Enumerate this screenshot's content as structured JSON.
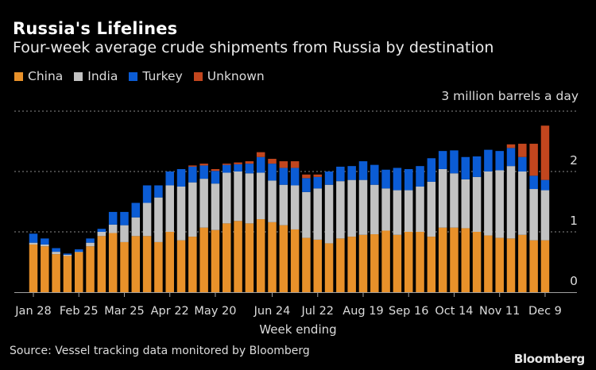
{
  "chart_data": {
    "type": "bar",
    "stacked": true,
    "title": "Russia's Lifelines",
    "subtitle": "Four-week average crude shipments from Russia by destination",
    "xlabel": "Week ending",
    "ylabel": "3 million barrels a day",
    "ylim": [
      0,
      3
    ],
    "yticks": [
      0,
      1,
      2,
      3
    ],
    "ytick_labels": [
      "0",
      "1",
      "2",
      ""
    ],
    "grid": true,
    "legend_position": "top-left",
    "bar_count": 46,
    "x_ticks": [
      {
        "bar_index": 0,
        "label": "Jan 28"
      },
      {
        "bar_index": 4,
        "label": "Feb 25"
      },
      {
        "bar_index": 8,
        "label": "Mar 25"
      },
      {
        "bar_index": 12,
        "label": "Apr 22"
      },
      {
        "bar_index": 16,
        "label": "May 20"
      },
      {
        "bar_index": 21,
        "label": "Jun 24"
      },
      {
        "bar_index": 25,
        "label": "Jul 22"
      },
      {
        "bar_index": 29,
        "label": "Aug 19"
      },
      {
        "bar_index": 33,
        "label": "Sep 16"
      },
      {
        "bar_index": 37,
        "label": "Oct 14"
      },
      {
        "bar_index": 41,
        "label": "Nov 11"
      },
      {
        "bar_index": 45,
        "label": "Dec 9"
      }
    ],
    "series": [
      {
        "name": "China",
        "color": "#E8912A",
        "values": [
          0.79,
          0.76,
          0.63,
          0.6,
          0.66,
          0.76,
          0.93,
          0.98,
          0.83,
          0.93,
          0.93,
          0.83,
          1.0,
          0.86,
          0.92,
          1.07,
          1.03,
          1.14,
          1.18,
          1.14,
          1.21,
          1.16,
          1.11,
          1.04,
          0.9,
          0.87,
          0.81,
          0.89,
          0.92,
          0.95,
          0.96,
          1.02,
          0.95,
          1.0,
          1.0,
          0.92,
          1.07,
          1.07,
          1.06,
          1.0,
          0.94,
          0.9,
          0.89,
          0.95,
          0.86,
          0.86
        ]
      },
      {
        "name": "India",
        "color": "#C2C2C2",
        "values": [
          0.03,
          0.03,
          0.04,
          0.02,
          0.01,
          0.06,
          0.07,
          0.14,
          0.28,
          0.31,
          0.55,
          0.74,
          0.77,
          0.89,
          0.9,
          0.81,
          0.77,
          0.84,
          0.82,
          0.83,
          0.77,
          0.69,
          0.67,
          0.73,
          0.76,
          0.85,
          0.97,
          0.95,
          0.94,
          0.91,
          0.82,
          0.7,
          0.74,
          0.69,
          0.75,
          0.91,
          0.97,
          0.9,
          0.81,
          0.91,
          1.06,
          1.12,
          1.2,
          1.05,
          0.85,
          0.83
        ]
      },
      {
        "name": "Turkey",
        "color": "#0B5CD5",
        "values": [
          0.15,
          0.1,
          0.06,
          0.02,
          0.04,
          0.07,
          0.05,
          0.21,
          0.22,
          0.24,
          0.29,
          0.2,
          0.23,
          0.29,
          0.26,
          0.22,
          0.21,
          0.13,
          0.12,
          0.16,
          0.26,
          0.28,
          0.28,
          0.29,
          0.23,
          0.19,
          0.22,
          0.24,
          0.23,
          0.31,
          0.33,
          0.31,
          0.37,
          0.35,
          0.34,
          0.39,
          0.3,
          0.38,
          0.37,
          0.34,
          0.36,
          0.32,
          0.3,
          0.24,
          0.22,
          0.17
        ]
      },
      {
        "name": "Unknown",
        "color": "#C2461E",
        "values": [
          0,
          0,
          0,
          0,
          0,
          0,
          0,
          0,
          0,
          0,
          0,
          0,
          0,
          0,
          0.02,
          0.03,
          0.03,
          0.02,
          0.03,
          0.04,
          0.08,
          0.08,
          0.11,
          0.11,
          0.06,
          0.04,
          0,
          0,
          0,
          0,
          0,
          0,
          0,
          0,
          0,
          0,
          0,
          0,
          0,
          0,
          0,
          0,
          0.06,
          0.22,
          0.53,
          0.9
        ]
      }
    ]
  },
  "header": {
    "title": "Russia's Lifelines",
    "subtitle": "Four-week average crude shipments from Russia by destination"
  },
  "legend": [
    {
      "label": "China",
      "color": "#E8912A"
    },
    {
      "label": "India",
      "color": "#C2C2C2"
    },
    {
      "label": "Turkey",
      "color": "#0B5CD5"
    },
    {
      "label": "Unknown",
      "color": "#C2461E"
    }
  ],
  "axis": {
    "unit_label": "3 million barrels a day",
    "x_title": "Week ending"
  },
  "footer": {
    "source": "Source: Vessel tracking data monitored by Bloomberg",
    "brand": "Bloomberg"
  }
}
